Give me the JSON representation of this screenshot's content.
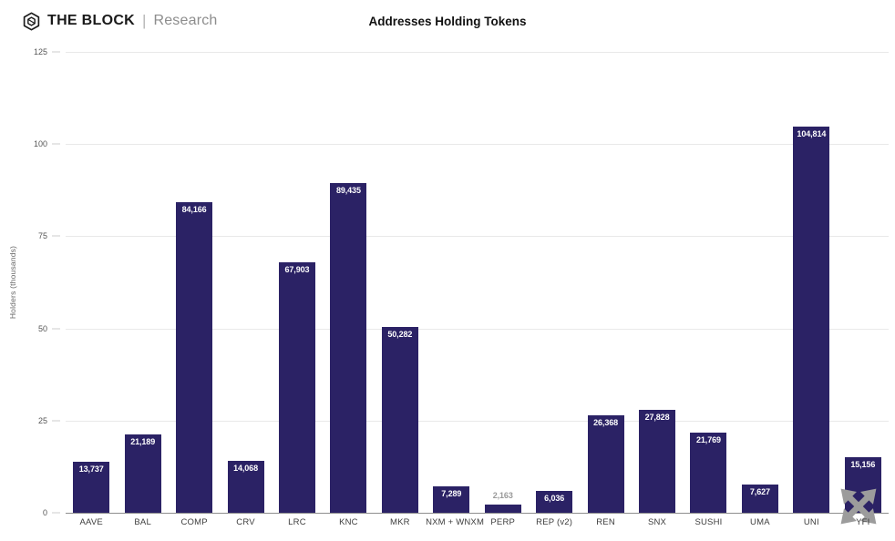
{
  "header": {
    "brand": "THE BLOCK",
    "divider": "|",
    "suffix": "Research"
  },
  "chart_data": {
    "type": "bar",
    "title": "Addresses Holding Tokens",
    "xlabel": "",
    "ylabel": "Holders (thousands)",
    "categories": [
      "AAVE",
      "BAL",
      "COMP",
      "CRV",
      "LRC",
      "KNC",
      "MKR",
      "NXM + WNXM",
      "PERP",
      "REP (v2)",
      "REN",
      "SNX",
      "SUSHI",
      "UMA",
      "UNI",
      "YFI"
    ],
    "values": [
      13737,
      21189,
      84166,
      14068,
      67903,
      89435,
      50282,
      7289,
      2163,
      6036,
      26368,
      27828,
      21769,
      7627,
      104814,
      15156
    ],
    "value_labels": [
      "13,737",
      "21,189",
      "84,166",
      "14,068",
      "67,903",
      "89,435",
      "50,282",
      "7,289",
      "2,163",
      "6,036",
      "26,368",
      "27,828",
      "21,769",
      "7,627",
      "104,814",
      "15,156"
    ],
    "value_unit_divisor": 1000,
    "ylim": [
      0,
      125
    ],
    "yticks": [
      0,
      25,
      50,
      75,
      100,
      125
    ],
    "grid": true,
    "legend_position": "none",
    "colors": {
      "bar": "#2b2265",
      "grid": "#e9e9e9",
      "axis_line": "#8f8f8f",
      "tick_text": "#555555",
      "value_label_inside": "#ffffff",
      "value_label_outside": "#999999"
    }
  },
  "icons": {
    "brand_logo": "block-cube-hexagon",
    "move": "four-diagonal-arrows"
  }
}
